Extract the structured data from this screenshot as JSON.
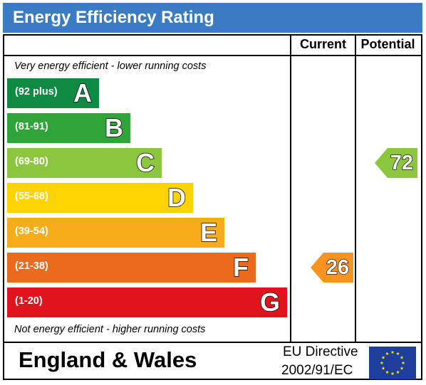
{
  "title": "Energy Efficiency Rating",
  "columns": {
    "current": "Current",
    "potential": "Potential"
  },
  "captions": {
    "top": "Very energy efficient - lower running costs",
    "bottom": "Not energy efficient - higher running costs"
  },
  "footer": {
    "country": "England & Wales",
    "directive_line1": "EU Directive",
    "directive_line2": "2002/91/EC",
    "flag_icon": "eu-flag-icon"
  },
  "chart_data": {
    "type": "bar",
    "categories": [
      "A",
      "B",
      "C",
      "D",
      "E",
      "F",
      "G"
    ],
    "ranges": [
      "(92 plus)",
      "(81-91)",
      "(69-80)",
      "(55-68)",
      "(39-54)",
      "(21-38)",
      "(1-20)"
    ],
    "colors": [
      "#0e8a43",
      "#2fa539",
      "#8cc63f",
      "#ffd300",
      "#f7ac1c",
      "#ea6b1b",
      "#e1141d"
    ],
    "current": {
      "value": "26",
      "band": "F",
      "color": "#f7931e"
    },
    "potential": {
      "value": "72",
      "band": "C",
      "color": "#8cc63f"
    }
  }
}
